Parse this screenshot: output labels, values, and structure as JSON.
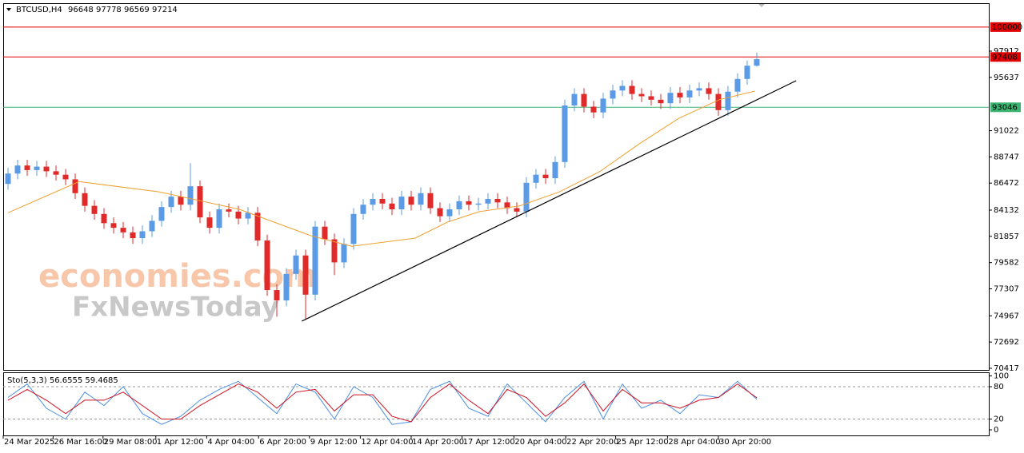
{
  "chart_data": {
    "type": "candlestick",
    "title": "BTCUSD,H4",
    "open": [
      86400,
      87300,
      88000,
      87600,
      87900,
      87500,
      87200,
      86800,
      85600,
      84500,
      83800,
      83000,
      82600,
      82200,
      81700,
      82300,
      83200,
      84400,
      85300,
      84600,
      86200,
      83500,
      82600,
      84200,
      84000,
      83400,
      83900,
      81500,
      77200,
      76300,
      78600,
      80200,
      76800,
      82700,
      81600,
      79600,
      81200,
      83800,
      84600,
      85100,
      84700,
      84200,
      85300,
      84600,
      85600,
      84300,
      83600,
      84200,
      84900,
      84600,
      84700,
      85100,
      84800,
      84300,
      84000,
      86500,
      87200,
      86900,
      88300,
      93200,
      94200,
      93100,
      92600,
      93800,
      94500,
      94900,
      94200,
      94000,
      93700,
      93400,
      94300,
      93900,
      94500,
      94700,
      94200,
      92800,
      94400,
      95500,
      96648
    ],
    "high": [
      87800,
      88500,
      88500,
      88400,
      88400,
      88000,
      87700,
      87300,
      86100,
      85000,
      84300,
      83500,
      83100,
      82700,
      82800,
      83700,
      84900,
      85800,
      85800,
      88200,
      86700,
      84000,
      84700,
      84700,
      84500,
      84400,
      84400,
      82000,
      77700,
      79100,
      80700,
      80700,
      83200,
      83200,
      82100,
      81700,
      84300,
      85100,
      85600,
      85600,
      85200,
      85800,
      85800,
      86100,
      86100,
      84800,
      84700,
      85400,
      85400,
      85200,
      85600,
      85600,
      85300,
      84800,
      87000,
      87700,
      87700,
      88800,
      93700,
      94700,
      94700,
      93600,
      94300,
      95000,
      95400,
      95400,
      94700,
      94500,
      94200,
      94800,
      94800,
      95000,
      95200,
      95200,
      94700,
      94900,
      96000,
      97100,
      97778
    ],
    "low": [
      85900,
      86800,
      87100,
      87100,
      87000,
      86700,
      86300,
      85100,
      84000,
      83300,
      82500,
      82100,
      81700,
      81200,
      81200,
      81800,
      82700,
      83900,
      84100,
      84100,
      83000,
      82100,
      82100,
      83500,
      82900,
      82900,
      81000,
      76700,
      74900,
      75800,
      78100,
      74700,
      76300,
      81100,
      78500,
      79100,
      80700,
      83300,
      84100,
      84200,
      83700,
      83700,
      84100,
      84100,
      83800,
      83100,
      83100,
      83700,
      84100,
      84100,
      84200,
      84300,
      83800,
      83500,
      83500,
      86000,
      86400,
      86400,
      87800,
      92700,
      92600,
      92100,
      92100,
      93300,
      94000,
      93700,
      93500,
      93200,
      92900,
      92900,
      93400,
      93400,
      94000,
      93700,
      92300,
      92300,
      93900,
      95000,
      96569
    ],
    "close": [
      87300,
      88000,
      87600,
      87900,
      87500,
      87200,
      86800,
      85600,
      84500,
      83800,
      83000,
      82600,
      82200,
      81700,
      82300,
      83200,
      84400,
      85300,
      84600,
      86200,
      83500,
      82600,
      84200,
      84000,
      83400,
      83900,
      81500,
      77200,
      76300,
      78600,
      80200,
      76800,
      82700,
      81600,
      79600,
      81200,
      83800,
      84600,
      85100,
      84700,
      84200,
      85300,
      84600,
      85600,
      84300,
      83600,
      84200,
      84900,
      84600,
      84700,
      85100,
      84800,
      84300,
      84000,
      86500,
      87200,
      86900,
      88300,
      93200,
      94200,
      93100,
      92600,
      93800,
      94500,
      94900,
      94200,
      94000,
      93700,
      93400,
      94300,
      93900,
      94500,
      94700,
      94200,
      92800,
      94400,
      95500,
      96648,
      97214
    ],
    "up_color": "#5b9be6",
    "down_color": "#e02a2a",
    "xlim": [
      -0.5,
      102.17
    ],
    "xticks": [
      {
        "value": -0.5,
        "label": "24 Mar 2025"
      },
      {
        "value": 4.7,
        "label": "26 Mar 16:00"
      },
      {
        "value": 9.9,
        "label": "29 Mar 08:00"
      },
      {
        "value": 15.4,
        "label": "1 Apr 12:00"
      },
      {
        "value": 20.7,
        "label": "4 Apr 04:00"
      },
      {
        "value": 26.1,
        "label": "6 Apr 20:00"
      },
      {
        "value": 31.4,
        "label": "9 Apr 12:00"
      },
      {
        "value": 36.7,
        "label": "12 Apr 04:00"
      },
      {
        "value": 42,
        "label": "14 Apr 20:00"
      },
      {
        "value": 47.3,
        "label": "17 Apr 12:00"
      },
      {
        "value": 52.7,
        "label": "20 Apr 04:00"
      },
      {
        "value": 58.1,
        "label": "22 Apr 20:00"
      },
      {
        "value": 63.3,
        "label": "25 Apr 12:00"
      },
      {
        "value": 68.7,
        "label": "28 Apr 04:00"
      },
      {
        "value": 74,
        "label": "30 Apr 20:00"
      }
    ],
    "ylim": [
      70278,
      102069
    ],
    "yticks": [
      97912,
      95637,
      91022,
      88747,
      86472,
      84132,
      81857,
      79582,
      77307,
      74967,
      72692,
      70417
    ],
    "hlines": [
      {
        "value": 100000,
        "color": "#e00000"
      },
      {
        "value": 97408,
        "color": "#e00000"
      },
      {
        "value": 93046,
        "color": "#3cb371"
      }
    ],
    "ma": {
      "color": "#f0a030",
      "x": [
        0,
        7.4,
        15.8,
        24.1,
        31.6,
        35.8,
        42.4,
        45.8,
        49.1,
        53.3,
        57.4,
        61.6,
        65.8,
        69.9,
        74.1,
        77.8
      ],
      "values": [
        83900,
        86600,
        85700,
        84200,
        81900,
        81000,
        81700,
        83100,
        84000,
        84500,
        85700,
        87450,
        89900,
        92100,
        93700,
        94450
      ]
    },
    "trendline": {
      "color": "#000000",
      "x": [
        30.6,
        82.1
      ],
      "values": [
        74500,
        95350
      ]
    },
    "indicator": {
      "name": "Sto(5,3,3)",
      "x": [
        0,
        2,
        4,
        6,
        8,
        10,
        12,
        14,
        16,
        18,
        20,
        22,
        24,
        26,
        28,
        30,
        32,
        34,
        36,
        38,
        40,
        42,
        44,
        46,
        48,
        50,
        52,
        54,
        56,
        58,
        60,
        62,
        64,
        66,
        68,
        70,
        72,
        74,
        76,
        78
      ],
      "main": {
        "color": "#4a8fe0",
        "values": [
          60,
          85,
          40,
          20,
          70,
          45,
          80,
          30,
          10,
          25,
          55,
          75,
          90,
          60,
          30,
          85,
          70,
          20,
          80,
          60,
          10,
          15,
          75,
          90,
          40,
          25,
          85,
          50,
          15,
          60,
          90,
          20,
          85,
          40,
          55,
          30,
          65,
          60,
          90,
          56.6555
        ]
      },
      "signal": {
        "color": "#d01020",
        "values": [
          55,
          75,
          55,
          30,
          55,
          55,
          70,
          45,
          20,
          20,
          45,
          65,
          85,
          70,
          40,
          70,
          75,
          35,
          65,
          65,
          25,
          15,
          60,
          85,
          55,
          30,
          75,
          60,
          25,
          50,
          85,
          35,
          75,
          50,
          50,
          40,
          55,
          60,
          85,
          59.4685
        ]
      },
      "ylim": [
        -10.4,
        105.2
      ],
      "yticks": [
        100,
        80,
        20,
        0
      ],
      "levels": [
        80,
        20
      ]
    }
  },
  "watermark": {
    "line1": "economies.com",
    "line2": "FxNewsToday"
  }
}
